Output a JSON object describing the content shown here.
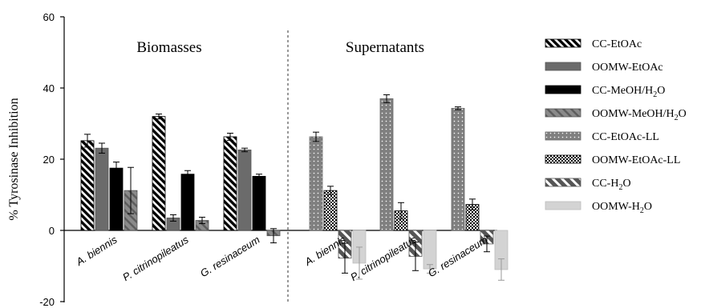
{
  "chart_data": {
    "type": "bar",
    "ylabel": "% Tyrosinase Inhibition",
    "ylim": [
      -20,
      60
    ],
    "yticks": [
      -20,
      0,
      20,
      40,
      60
    ],
    "legend_position": "right",
    "grid": false,
    "panels": [
      {
        "title": "Biomasses",
        "categories": [
          "A. biennis",
          "P. citrinopileatus",
          "G. resinaceum"
        ],
        "series": [
          {
            "name": "CC-EtOAc",
            "values": [
              25.2,
              32.0,
              26.3
            ],
            "errors": [
              1.8,
              0.7,
              1.0
            ]
          },
          {
            "name": "OOMW-EtOAc",
            "values": [
              23.1,
              3.5,
              22.6
            ],
            "errors": [
              1.4,
              0.9,
              0.5
            ]
          },
          {
            "name": "CC-MeOH/H2O",
            "values": [
              17.5,
              15.8,
              15.2
            ],
            "errors": [
              1.7,
              1.0,
              0.6
            ]
          },
          {
            "name": "OOMW-MeOH/H2O",
            "values": [
              11.2,
              2.8,
              -1.5
            ],
            "errors": [
              6.5,
              0.9,
              2.0
            ]
          }
        ]
      },
      {
        "title": "Supernatants",
        "categories": [
          "A. biennis",
          "P. citrinopileatus",
          "G. resinaceum"
        ],
        "series": [
          {
            "name": "CC-EtOAc-LL",
            "values": [
              26.3,
              37.0,
              34.3
            ],
            "errors": [
              1.3,
              1.1,
              0.4
            ]
          },
          {
            "name": "OOMW-EtOAc-LL",
            "values": [
              11.2,
              5.5,
              7.3
            ],
            "errors": [
              1.2,
              2.3,
              1.5
            ]
          },
          {
            "name": "CC-H2O",
            "values": [
              -7.8,
              -7.3,
              -3.8
            ],
            "errors": [
              4.2,
              4.0,
              2.2
            ]
          },
          {
            "name": "OOMW-H2O",
            "values": [
              -9.2,
              -10.8,
              -11.0
            ],
            "errors": [
              4.5,
              1.2,
              3.0
            ]
          }
        ]
      }
    ],
    "legend": [
      {
        "name": "CC-EtOAc",
        "pattern": "diag-black"
      },
      {
        "name": "OOMW-EtOAc",
        "pattern": "solid-grey"
      },
      {
        "name": "CC-MeOH/H2O",
        "pattern": "solid-black"
      },
      {
        "name": "OOMW-MeOH/H2O",
        "pattern": "diag-grey"
      },
      {
        "name": "CC-EtOAc-LL",
        "pattern": "dots-grey"
      },
      {
        "name": "OOMW-EtOAc-LL",
        "pattern": "checker"
      },
      {
        "name": "CC-H2O",
        "pattern": "diag-white-grey"
      },
      {
        "name": "OOMW-H2O",
        "pattern": "solid-light"
      }
    ]
  }
}
